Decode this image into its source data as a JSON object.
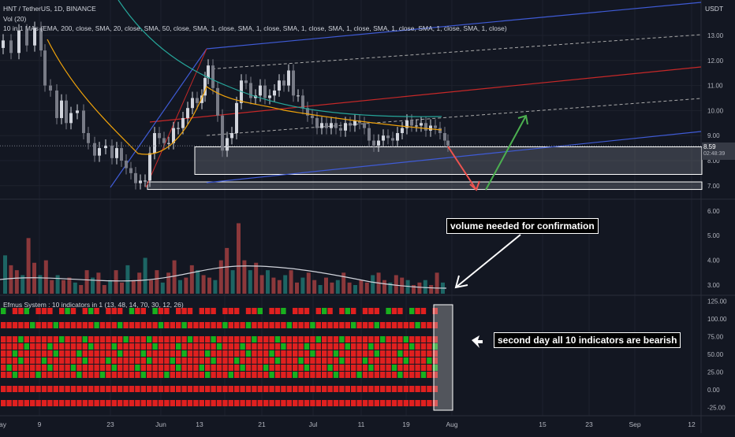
{
  "header": {
    "symbol_line": "HNT / TetherUS, 1D, BINANCE",
    "vol_line": "Vol (20)",
    "indicator_line": "10 in 1 MAs (EMA, 200, close, SMA, 20, close, SMA, 50, close, SMA, 1, close, SMA, 1, close, SMA, 1, close, SMA, 1, close, SMA, 1, close, SMA, 1, close, SMA, 1, close)",
    "currency": "USDT",
    "lower_title": "Efmus System : 10 indicators in 1 (13, 48, 14, 70, 30, 12, 26)"
  },
  "price_badge": {
    "price": "8.59",
    "countdown": "02:48:39"
  },
  "annotations": {
    "volume": "volume needed for confirmation",
    "indicators": "second day all 10 indicators are bearish"
  },
  "axes": {
    "price_ticks": [
      "13.00",
      "12.00",
      "11.00",
      "10.00",
      "9.00",
      "8.00",
      "7.00"
    ],
    "volume_ticks": [
      "6.00",
      "5.00",
      "4.00",
      "3.00"
    ],
    "osc_ticks": [
      "125.00",
      "100.00",
      "75.00",
      "50.00",
      "25.00",
      "0.00",
      "-25.00"
    ],
    "x_ticks": [
      "May",
      "9",
      "23",
      "Jun",
      "13",
      "21",
      "Jul",
      "11",
      "19",
      "Aug",
      "15",
      "23",
      "Sep",
      "12"
    ]
  },
  "colors": {
    "background": "#131722",
    "bull": "#26a69a",
    "bear": "#ef5350",
    "up_candle": "#d1d4dc",
    "down_candle": "#787b86",
    "signal_red": "#e0201f",
    "signal_green": "#19b01e"
  },
  "chart_data": [
    {
      "type": "line",
      "title": "HNT / TetherUS, 1D, BINANCE",
      "xlabel": "",
      "ylabel": "",
      "x": [
        "May",
        "9",
        "23",
        "Jun",
        "13",
        "21",
        "Jul",
        "11",
        "19"
      ],
      "series": [
        {
          "values": [
            14.5,
            10.5,
            7.4,
            9.5,
            11.8,
            11.6,
            10.2,
            9.0,
            9.3
          ]
        }
      ],
      "ylim": [
        6.6,
        13.9
      ],
      "last_price": 8.59,
      "support_zones": [
        [
          7.45,
          8.55
        ],
        [
          6.85,
          7.15
        ]
      ]
    },
    {
      "type": "bar",
      "title": "",
      "series": [
        {
          "name": "Vol (20)",
          "values": [
            4.2,
            3.8,
            3.6,
            3.4,
            4.9,
            3.9,
            3.4,
            4.0,
            3.2,
            3.4,
            3.2,
            3.3,
            3.1,
            3.0,
            3.6,
            3.3,
            3.5,
            3.0,
            3.2,
            3.6,
            3.1,
            3.8,
            3.2,
            3.5,
            4.1,
            3.2,
            3.6,
            3.1,
            3.5,
            4.0,
            3.2,
            3.3,
            3.8,
            3.6,
            3.4,
            3.3,
            3.2,
            4.0,
            4.5,
            3.6,
            5.5,
            4.0,
            3.6,
            3.9,
            3.4,
            3.6,
            3.3,
            3.2,
            3.4,
            3.6,
            3.1,
            3.3,
            3.5,
            3.2,
            3.0,
            3.3,
            3.1,
            3.2,
            3.5,
            3.1,
            3.0,
            3.2,
            3.1,
            3.4,
            3.5,
            3.2,
            3.1,
            3.4,
            3.3,
            3.2,
            3.0,
            3.1,
            3.2,
            3.0,
            3.5,
            3.1
          ]
        }
      ],
      "ylim": [
        2.6,
        6.4
      ]
    },
    {
      "type": "heatmap",
      "title": "Efmus System : 10 indicators in 1 (13, 48, 14, 70, 30, 12, 26)",
      "rows": 10,
      "ylim": [
        -30,
        130
      ]
    }
  ]
}
